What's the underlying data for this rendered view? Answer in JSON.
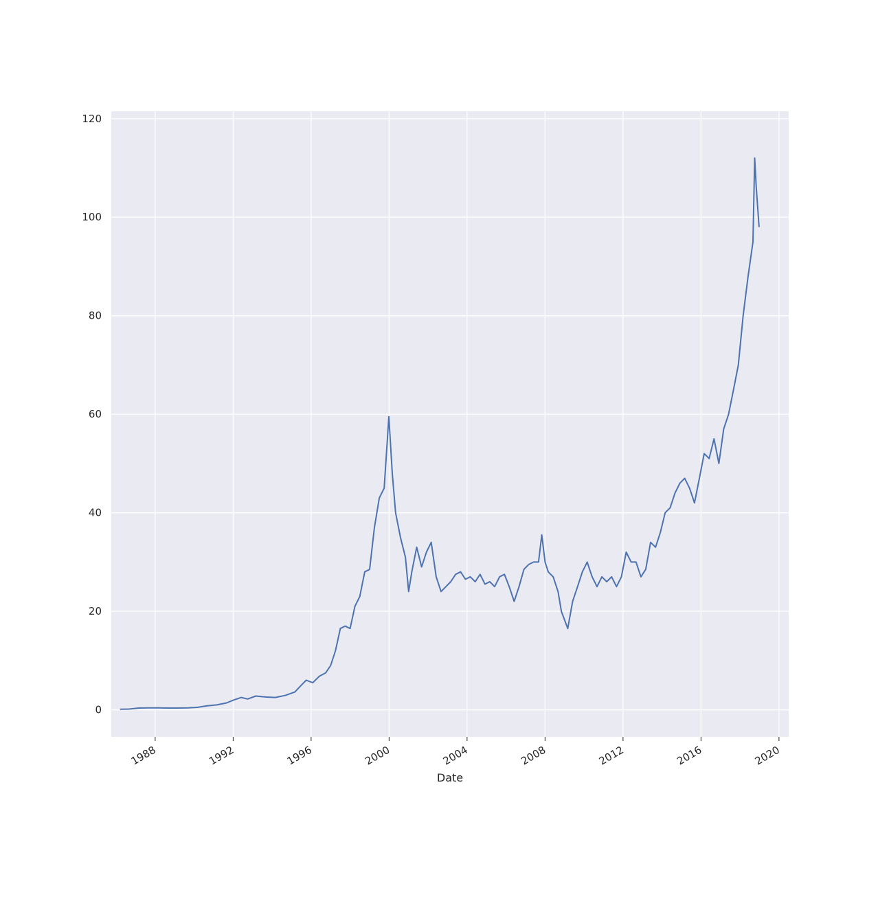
{
  "chart_data": {
    "type": "line",
    "xlabel": "Date",
    "ylabel": "",
    "xlim": [
      "1985-10-01",
      "2020-07-01"
    ],
    "ylim": [
      -5.5,
      121.5
    ],
    "x_ticks": [
      "1988",
      "1992",
      "1996",
      "2000",
      "2004",
      "2008",
      "2012",
      "2016",
      "2020"
    ],
    "y_ticks": [
      "0",
      "20",
      "40",
      "60",
      "80",
      "100",
      "120"
    ],
    "grid": true,
    "legend": "none",
    "colors": {
      "line": "#4c72b0",
      "plot_background": "#eaeaf2",
      "grid": "#ffffff"
    },
    "series": [
      {
        "x": [
          "1986-03-13",
          "1986-09-01",
          "1987-03-01",
          "1987-09-01",
          "1988-03-01",
          "1988-09-01",
          "1989-03-01",
          "1989-09-01",
          "1990-03-01",
          "1990-09-01",
          "1991-03-01",
          "1991-09-01",
          "1992-01-15",
          "1992-06-01",
          "1992-10-01",
          "1993-03-01",
          "1993-09-01",
          "1994-03-01",
          "1994-09-01",
          "1995-03-01",
          "1995-07-01",
          "1995-10-01",
          "1996-02-01",
          "1996-06-01",
          "1996-10-01",
          "1997-01-01",
          "1997-04-01",
          "1997-07-01",
          "1997-10-01",
          "1998-01-01",
          "1998-04-01",
          "1998-07-01",
          "1998-10-01",
          "1999-01-01",
          "1999-04-01",
          "1999-07-01",
          "1999-10-01",
          "1999-12-27",
          "2000-03-01",
          "2000-05-01",
          "2000-08-01",
          "2000-11-01",
          "2001-01-01",
          "2001-03-01",
          "2001-06-01",
          "2001-09-01",
          "2001-12-01",
          "2002-03-01",
          "2002-06-01",
          "2002-09-01",
          "2002-12-01",
          "2003-03-01",
          "2003-06-01",
          "2003-09-01",
          "2003-12-01",
          "2004-03-01",
          "2004-06-01",
          "2004-09-01",
          "2004-12-01",
          "2005-03-01",
          "2005-06-01",
          "2005-09-01",
          "2005-12-01",
          "2006-03-01",
          "2006-06-01",
          "2006-09-01",
          "2006-12-01",
          "2007-03-01",
          "2007-06-01",
          "2007-09-01",
          "2007-11-01",
          "2008-01-01",
          "2008-03-01",
          "2008-06-01",
          "2008-09-01",
          "2008-11-01",
          "2009-03-01",
          "2009-06-01",
          "2009-09-01",
          "2009-12-01",
          "2010-03-01",
          "2010-06-01",
          "2010-09-01",
          "2010-12-01",
          "2011-03-01",
          "2011-06-01",
          "2011-09-01",
          "2011-12-01",
          "2012-03-01",
          "2012-06-01",
          "2012-09-01",
          "2012-12-01",
          "2013-03-01",
          "2013-06-01",
          "2013-09-01",
          "2013-12-01",
          "2014-03-01",
          "2014-06-01",
          "2014-09-01",
          "2014-12-01",
          "2015-03-01",
          "2015-06-01",
          "2015-09-01",
          "2015-12-01",
          "2016-03-01",
          "2016-06-01",
          "2016-09-01",
          "2016-12-01",
          "2017-03-01",
          "2017-06-01",
          "2017-09-01",
          "2017-12-01",
          "2018-03-01",
          "2018-06-01",
          "2018-09-01",
          "2018-10-03",
          "2018-11-01",
          "2018-12-24"
        ],
        "y": [
          0.1,
          0.15,
          0.35,
          0.4,
          0.4,
          0.35,
          0.35,
          0.4,
          0.5,
          0.8,
          1.0,
          1.4,
          2.0,
          2.5,
          2.2,
          2.8,
          2.6,
          2.5,
          2.9,
          3.6,
          5.0,
          6.0,
          5.5,
          6.8,
          7.5,
          9.0,
          12.0,
          16.5,
          17.0,
          16.5,
          21.0,
          23.0,
          28.0,
          28.5,
          37.0,
          43.0,
          45.0,
          59.5,
          48.0,
          40.0,
          35.0,
          31.0,
          24.0,
          28.0,
          33.0,
          29.0,
          32.0,
          34.0,
          27.0,
          24.0,
          25.0,
          26.0,
          27.5,
          28.0,
          26.5,
          27.0,
          26.0,
          27.5,
          25.5,
          26.0,
          25.0,
          27.0,
          27.5,
          25.0,
          22.0,
          25.0,
          28.5,
          29.5,
          30.0,
          30.0,
          35.5,
          30.0,
          28.0,
          27.0,
          24.0,
          20.0,
          16.5,
          22.0,
          25.0,
          28.0,
          30.0,
          27.0,
          25.0,
          27.0,
          26.0,
          27.0,
          25.0,
          27.0,
          32.0,
          30.0,
          30.0,
          27.0,
          28.5,
          34.0,
          33.0,
          36.0,
          40.0,
          41.0,
          44.0,
          46.0,
          47.0,
          45.0,
          42.0,
          47.0,
          52.0,
          51.0,
          55.0,
          50.0,
          57.0,
          60.0,
          65.0,
          70.0,
          80.0,
          88.0,
          95.0,
          112.0,
          106.0,
          98.0
        ]
      }
    ]
  }
}
